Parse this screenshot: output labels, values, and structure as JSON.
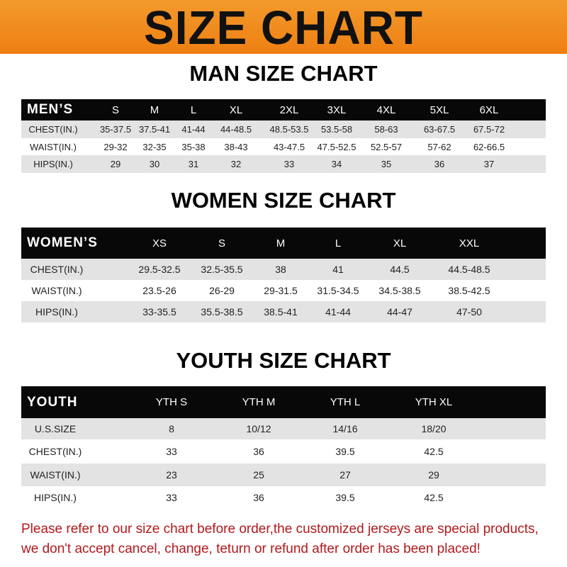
{
  "title": "SIZE CHART",
  "men": {
    "title": "MAN SIZE CHART",
    "header": [
      "MEN’S",
      "S",
      "M",
      "L",
      "XL",
      "2XL",
      "3XL",
      "4XL",
      "5XL",
      "6XL"
    ],
    "rows": [
      [
        "CHEST(IN.)",
        "35-37.5",
        "37.5-41",
        "41-44",
        "44-48.5",
        "48.5-53.5",
        "53.5-58",
        "58-63",
        "63-67.5",
        "67.5-72"
      ],
      [
        "WAIST(IN.)",
        "29-32",
        "32-35",
        "35-38",
        "38-43",
        "43-47.5",
        "47.5-52.5",
        "52.5-57",
        "57-62",
        "62-66.5"
      ],
      [
        "HIPS(IN.)",
        "29",
        "30",
        "31",
        "32",
        "33",
        "34",
        "35",
        "36",
        "37"
      ]
    ]
  },
  "women": {
    "title": "WOMEN SIZE CHART",
    "header": [
      "WOMEN’S",
      "XS",
      "S",
      "M",
      "L",
      "XL",
      "XXL"
    ],
    "rows": [
      [
        "CHEST(IN.)",
        "29.5-32.5",
        "32.5-35.5",
        "38",
        "41",
        "44.5",
        "44.5-48.5"
      ],
      [
        "WAIST(IN.)",
        "23.5-26",
        "26-29",
        "29-31.5",
        "31.5-34.5",
        "34.5-38.5",
        "38.5-42.5"
      ],
      [
        "HIPS(IN.)",
        "33-35.5",
        "35.5-38.5",
        "38.5-41",
        "41-44",
        "44-47",
        "47-50"
      ]
    ]
  },
  "youth": {
    "title": "YOUTH SIZE CHART",
    "header": [
      "YOUTH",
      "YTH S",
      "YTH M",
      "YTH L",
      "YTH XL"
    ],
    "rows": [
      [
        "U.S.SIZE",
        "8",
        "10/12",
        "14/16",
        "18/20"
      ],
      [
        "CHEST(IN.)",
        "33",
        "36",
        "39.5",
        "42.5"
      ],
      [
        "WAIST(IN.)",
        "23",
        "25",
        "27",
        "29"
      ],
      [
        "HIPS(IN.)",
        "33",
        "36",
        "39.5",
        "42.5"
      ]
    ]
  },
  "notice": [
    "Please refer to our size chart before order,the customized jerseys are special products,",
    "we don't accept cancel, change, teturn or refund after order has been placed!"
  ],
  "colors": {
    "banner": "#ef8a1e",
    "header_row": "#080808",
    "stripe": "#e3e3e3",
    "notice": "#b3191c"
  }
}
